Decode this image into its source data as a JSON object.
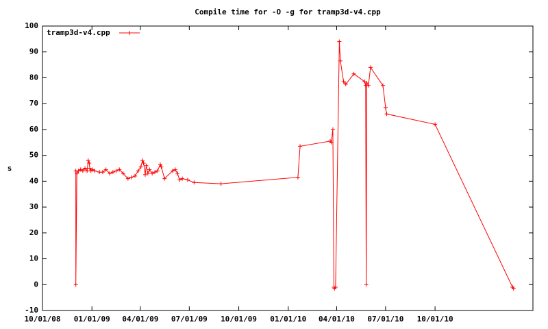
{
  "chart_data": {
    "type": "line",
    "title": "Compile time for -O -g for tramp3d-v4.cpp",
    "y_label": "s",
    "legend": "top-left",
    "grid": false,
    "xlim": [
      "10/01/08",
      "04/01/11"
    ],
    "xticks": [
      "10/01/08",
      "01/01/09",
      "04/01/09",
      "07/01/09",
      "10/01/09",
      "01/01/10",
      "04/01/10",
      "07/01/10",
      "10/01/10"
    ],
    "ylim": [
      -10,
      100
    ],
    "yticks": [
      -10,
      0,
      10,
      20,
      30,
      40,
      50,
      60,
      70,
      80,
      90,
      100
    ],
    "x": [
      "12/02/08",
      "12/02/08",
      "12/04/08",
      "12/07/08",
      "12/11/08",
      "12/15/08",
      "12/19/08",
      "12/23/08",
      "12/25/08",
      "12/27/08",
      "12/28/08",
      "12/30/08",
      "01/02/09",
      "01/06/09",
      "01/15/09",
      "01/21/09",
      "01/27/09",
      "02/03/09",
      "02/09/09",
      "02/15/09",
      "02/21/09",
      "02/28/09",
      "03/09/09",
      "03/15/09",
      "03/22/09",
      "03/28/09",
      "04/02/09",
      "04/05/09",
      "04/07/09",
      "04/10/09",
      "04/12/09",
      "04/15/09",
      "04/18/09",
      "04/23/09",
      "04/28/09",
      "05/03/09",
      "05/08/09",
      "05/10/09",
      "05/16/09",
      "05/31/09",
      "06/05/09",
      "06/09/09",
      "06/13/09",
      "06/18/09",
      "06/28/09",
      "07/10/09",
      "08/29/09",
      "01/19/10",
      "01/23/10",
      "03/20/10",
      "03/22/10",
      "03/25/10",
      "03/27/10",
      "03/28/10",
      "03/30/10",
      "04/06/10",
      "04/08/10",
      "04/14/10",
      "04/18/10",
      "05/03/10",
      "05/23/10",
      "05/25/10",
      "05/26/10",
      "05/27/10",
      "05/30/10",
      "06/03/10",
      "06/26/10",
      "07/01/10",
      "07/03/10",
      "10/01/10",
      "02/22/11",
      "02/24/11"
    ],
    "series": [
      {
        "name": "tramp3d-v4.cpp",
        "color": "#ff0000",
        "values": [
          44,
          0,
          43,
          44,
          44.5,
          44,
          45,
          44,
          48,
          47,
          45,
          44,
          44.5,
          44,
          43.5,
          43.5,
          44.5,
          43,
          43.5,
          44,
          44.5,
          43,
          41,
          41.5,
          42,
          44,
          45.5,
          48,
          47,
          42.5,
          46,
          43,
          44.5,
          43,
          43.5,
          44,
          46.5,
          45.5,
          41,
          44,
          44.5,
          43,
          40.5,
          41,
          40.5,
          39.5,
          39,
          41.5,
          53.5,
          55.5,
          55,
          60,
          -1,
          -1.5,
          -1,
          94,
          86.5,
          78.5,
          77.5,
          81.5,
          78.5,
          77,
          0,
          78,
          77,
          84,
          77,
          68.5,
          66,
          62,
          -1,
          -1.5
        ]
      }
    ]
  }
}
